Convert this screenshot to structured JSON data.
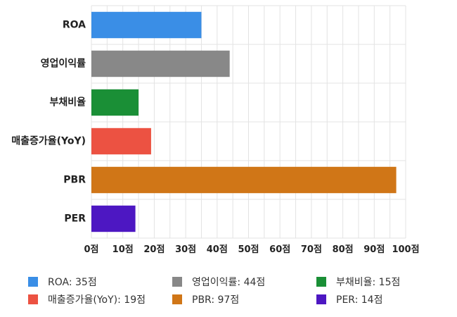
{
  "chart_data": {
    "type": "bar",
    "orientation": "horizontal",
    "categories": [
      "ROA",
      "영업이익률",
      "부채비율",
      "매출증가율(YoY)",
      "PBR",
      "PER"
    ],
    "values": [
      35,
      44,
      15,
      19,
      97,
      14
    ],
    "colors": [
      "#3a8ee6",
      "#888888",
      "#1a8f36",
      "#ec5242",
      "#d07617",
      "#4d17c2"
    ],
    "xlim": [
      0,
      100
    ],
    "x_ticks": [
      "0점",
      "10점",
      "20점",
      "30점",
      "40점",
      "50점",
      "60점",
      "70점",
      "80점",
      "90점",
      "100점"
    ],
    "grid": true,
    "legend_position": "bottom",
    "legend": [
      {
        "label": "ROA: 35점",
        "color": "#3a8ee6"
      },
      {
        "label": "영업이익률: 44점",
        "color": "#888888"
      },
      {
        "label": "부채비율: 15점",
        "color": "#1a8f36"
      },
      {
        "label": "매출증가율(YoY): 19점",
        "color": "#ec5242"
      },
      {
        "label": "PBR: 97점",
        "color": "#d07617"
      },
      {
        "label": "PER: 14점",
        "color": "#4d17c2"
      }
    ]
  }
}
